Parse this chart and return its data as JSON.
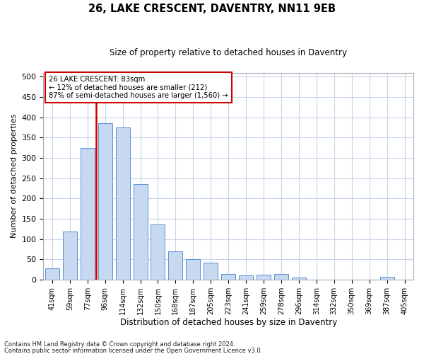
{
  "title": "26, LAKE CRESCENT, DAVENTRY, NN11 9EB",
  "subtitle": "Size of property relative to detached houses in Daventry",
  "xlabel": "Distribution of detached houses by size in Daventry",
  "ylabel": "Number of detached properties",
  "categories": [
    "41sqm",
    "59sqm",
    "77sqm",
    "96sqm",
    "114sqm",
    "132sqm",
    "150sqm",
    "168sqm",
    "187sqm",
    "205sqm",
    "223sqm",
    "241sqm",
    "259sqm",
    "278sqm",
    "296sqm",
    "314sqm",
    "332sqm",
    "350sqm",
    "369sqm",
    "387sqm",
    "405sqm"
  ],
  "bar_heights": [
    27,
    118,
    325,
    385,
    375,
    235,
    135,
    70,
    50,
    42,
    14,
    10,
    12,
    14,
    5,
    0,
    0,
    0,
    0,
    7,
    0
  ],
  "bar_color": "#c6d9f0",
  "bar_edge_color": "#5b8fd4",
  "property_line_color": "#cc0000",
  "annotation_text": "26 LAKE CRESCENT: 83sqm\n← 12% of detached houses are smaller (212)\n87% of semi-detached houses are larger (1,560) →",
  "annotation_box_color": "#cc0000",
  "ylim": [
    0,
    510
  ],
  "yticks": [
    0,
    50,
    100,
    150,
    200,
    250,
    300,
    350,
    400,
    450,
    500
  ],
  "footnote1": "Contains HM Land Registry data © Crown copyright and database right 2024.",
  "footnote2": "Contains public sector information licensed under the Open Government Licence v3.0.",
  "grid_color": "#c8d4e8"
}
